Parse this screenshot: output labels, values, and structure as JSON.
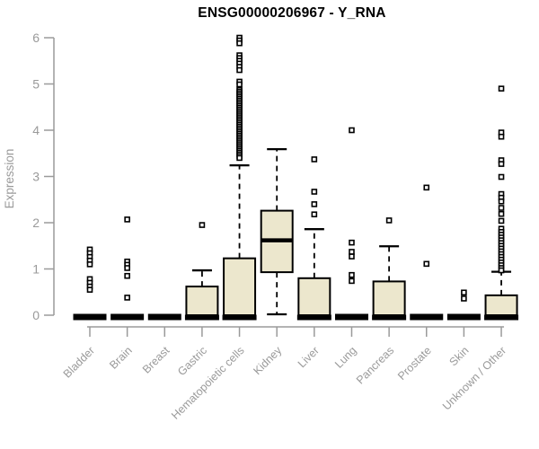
{
  "chart_data": {
    "type": "boxplot",
    "title": "ENSG00000206967 - Y_RNA",
    "ylabel": "Expression",
    "xlabel": "",
    "ylim": [
      0,
      6
    ],
    "yticks": [
      0,
      1,
      2,
      3,
      4,
      5,
      6
    ],
    "grid": false,
    "legend": "none",
    "categories": [
      "Bladder",
      "Brain",
      "Breast",
      "Gastric",
      "Hematopoietic cells",
      "Kidney",
      "Liver",
      "Lung",
      "Pancreas",
      "Prostate",
      "Skin",
      "Unknown / Other"
    ],
    "boxes": [
      {
        "category": "Bladder",
        "q1": 0,
        "median": 0,
        "q3": 0,
        "whisker_low": 0,
        "whisker_high": 0,
        "outliers": [
          1.42,
          1.34,
          1.26,
          1.18,
          1.1,
          0.78,
          0.7,
          0.62,
          0.55
        ]
      },
      {
        "category": "Brain",
        "q1": 0,
        "median": 0,
        "q3": 0,
        "whisker_low": 0,
        "whisker_high": 0,
        "outliers": [
          2.07,
          1.16,
          1.09,
          1.02,
          0.85,
          0.38
        ]
      },
      {
        "category": "Breast",
        "q1": 0,
        "median": 0,
        "q3": 0,
        "whisker_low": 0,
        "whisker_high": 0,
        "outliers": []
      },
      {
        "category": "Gastric",
        "q1": 0,
        "median": 0,
        "q3": 0.62,
        "whisker_low": 0,
        "whisker_high": 0.97,
        "outliers": [
          1.95
        ]
      },
      {
        "category": "Hematopoietic cells",
        "q1": 0,
        "median": 0,
        "q3": 1.23,
        "whisker_low": 0,
        "whisker_high": 3.24,
        "outliers": [
          6.0,
          5.94,
          5.88,
          5.62,
          5.56,
          5.5,
          5.44,
          5.37,
          5.3,
          5.05,
          4.99,
          4.88,
          4.84,
          4.8,
          4.76,
          4.72,
          4.68,
          4.64,
          4.6,
          4.56,
          4.52,
          4.48,
          4.44,
          4.4,
          4.36,
          4.32,
          4.28,
          4.24,
          4.2,
          4.16,
          4.12,
          4.08,
          4.04,
          4.0,
          3.96,
          3.92,
          3.88,
          3.84,
          3.8,
          3.76,
          3.72,
          3.68,
          3.64,
          3.6,
          3.56,
          3.52,
          3.48,
          3.44,
          3.4
        ]
      },
      {
        "category": "Kidney",
        "q1": 0.93,
        "median": 1.62,
        "q3": 2.26,
        "whisker_low": 0.02,
        "whisker_high": 3.59,
        "outliers": []
      },
      {
        "category": "Liver",
        "q1": 0,
        "median": 0,
        "q3": 0.8,
        "whisker_low": 0,
        "whisker_high": 1.86,
        "outliers": [
          3.37,
          2.67,
          2.4,
          2.18
        ]
      },
      {
        "category": "Lung",
        "q1": 0,
        "median": 0,
        "q3": 0,
        "whisker_low": 0,
        "whisker_high": 0,
        "outliers": [
          4.0,
          1.57,
          1.37,
          1.27,
          0.87,
          0.74
        ]
      },
      {
        "category": "Pancreas",
        "q1": 0,
        "median": 0,
        "q3": 0.73,
        "whisker_low": 0,
        "whisker_high": 1.49,
        "outliers": [
          2.05
        ]
      },
      {
        "category": "Prostate",
        "q1": 0,
        "median": 0,
        "q3": 0,
        "whisker_low": 0,
        "whisker_high": 0,
        "outliers": [
          2.76,
          1.11
        ]
      },
      {
        "category": "Skin",
        "q1": 0,
        "median": 0,
        "q3": 0,
        "whisker_low": 0,
        "whisker_high": 0,
        "outliers": [
          0.49,
          0.36
        ]
      },
      {
        "category": "Unknown / Other",
        "q1": 0,
        "median": 0,
        "q3": 0.43,
        "whisker_low": 0,
        "whisker_high": 0.94,
        "outliers": [
          4.9,
          3.95,
          3.86,
          3.35,
          3.27,
          2.99,
          2.62,
          2.54,
          2.46,
          2.32,
          2.19,
          2.04,
          1.87,
          1.8,
          1.74,
          1.68,
          1.62,
          1.56,
          1.5,
          1.44,
          1.38,
          1.32,
          1.26,
          1.2,
          1.14,
          1.08,
          1.02,
          0.97
        ]
      }
    ],
    "colors": {
      "box_fill": "#ece7cd",
      "box_stroke": "#000000",
      "median": "#000000",
      "whisker": "#000000",
      "outlier_stroke": "#000000",
      "outlier_fill": "#ffffff",
      "axis": "#9a9a9a",
      "tick_label": "#9a9a9a",
      "axis_label": "#9a9a9a",
      "title": "#000000",
      "background": "#ffffff"
    }
  }
}
